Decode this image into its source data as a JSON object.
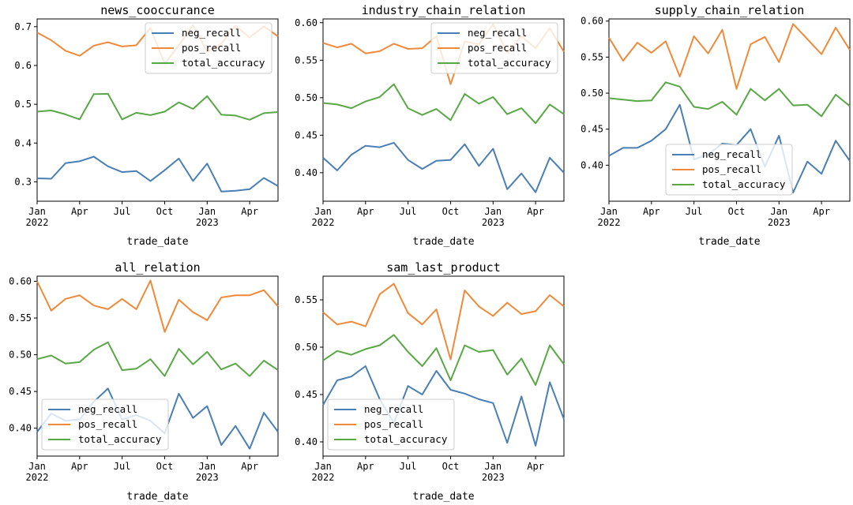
{
  "colors": {
    "neg_recall": "#4a7fb5",
    "pos_recall": "#ef8a3a",
    "total_accuracy": "#59a846"
  },
  "x_axis": {
    "ticks": [
      "Jan\n2022",
      "Apr",
      "Jul",
      "Oct",
      "Jan\n2023",
      "Apr"
    ],
    "label": "trade_date"
  },
  "chart_data": [
    {
      "type": "line",
      "title": "news_cooccurance",
      "xlabel": "trade_date",
      "x": [
        "2022-01",
        "2022-02",
        "2022-03",
        "2022-04",
        "2022-05",
        "2022-06",
        "2022-07",
        "2022-08",
        "2022-09",
        "2022-10",
        "2022-11",
        "2022-12",
        "2023-01",
        "2023-02",
        "2023-03",
        "2023-04",
        "2023-05",
        "2023-06"
      ],
      "ylim": [
        0.25,
        0.72
      ],
      "yticks": [
        0.3,
        0.4,
        0.5,
        0.6,
        0.7
      ],
      "ytick_labels": [
        "0.3",
        "0.4",
        "0.5",
        "0.6",
        "0.7"
      ],
      "legend": "top-right",
      "series": [
        {
          "name": "neg_recall",
          "values": [
            0.309,
            0.308,
            0.348,
            0.353,
            0.365,
            0.34,
            0.325,
            0.328,
            0.302,
            0.33,
            0.36,
            0.302,
            0.347,
            0.275,
            0.277,
            0.281,
            0.31,
            0.289
          ]
        },
        {
          "name": "pos_recall",
          "values": [
            0.685,
            0.665,
            0.638,
            0.625,
            0.651,
            0.66,
            0.649,
            0.652,
            0.697,
            0.604,
            0.652,
            0.704,
            0.635,
            0.656,
            0.702,
            0.672,
            0.701,
            0.675
          ]
        },
        {
          "name": "total_accuracy",
          "values": [
            0.481,
            0.484,
            0.474,
            0.461,
            0.526,
            0.527,
            0.461,
            0.478,
            0.472,
            0.481,
            0.505,
            0.488,
            0.521,
            0.473,
            0.471,
            0.46,
            0.477,
            0.48
          ]
        }
      ]
    },
    {
      "type": "line",
      "title": "industry_chain_relation",
      "xlabel": "trade_date",
      "x": [
        "2022-01",
        "2022-02",
        "2022-03",
        "2022-04",
        "2022-05",
        "2022-06",
        "2022-07",
        "2022-08",
        "2022-09",
        "2022-10",
        "2022-11",
        "2022-12",
        "2023-01",
        "2023-02",
        "2023-03",
        "2023-04",
        "2023-05",
        "2023-06"
      ],
      "ylim": [
        0.362,
        0.605
      ],
      "yticks": [
        0.4,
        0.45,
        0.5,
        0.55,
        0.6
      ],
      "ytick_labels": [
        "0.40",
        "0.45",
        "0.50",
        "0.55",
        "0.60"
      ],
      "legend": "top-right",
      "series": [
        {
          "name": "neg_recall",
          "values": [
            0.42,
            0.403,
            0.424,
            0.436,
            0.434,
            0.44,
            0.417,
            0.405,
            0.416,
            0.417,
            0.438,
            0.409,
            0.432,
            0.378,
            0.399,
            0.374,
            0.42,
            0.4
          ]
        },
        {
          "name": "pos_recall",
          "values": [
            0.573,
            0.567,
            0.572,
            0.559,
            0.562,
            0.572,
            0.565,
            0.566,
            0.582,
            0.518,
            0.575,
            0.571,
            0.598,
            0.56,
            0.582,
            0.566,
            0.593,
            0.561
          ]
        },
        {
          "name": "total_accuracy",
          "values": [
            0.493,
            0.491,
            0.486,
            0.495,
            0.501,
            0.518,
            0.486,
            0.477,
            0.485,
            0.47,
            0.505,
            0.492,
            0.501,
            0.478,
            0.486,
            0.466,
            0.491,
            0.478
          ]
        }
      ]
    },
    {
      "type": "line",
      "title": "supply_chain_relation",
      "xlabel": "trade_date",
      "x": [
        "2022-01",
        "2022-02",
        "2022-03",
        "2022-04",
        "2022-05",
        "2022-06",
        "2022-07",
        "2022-08",
        "2022-09",
        "2022-10",
        "2022-11",
        "2022-12",
        "2023-01",
        "2023-02",
        "2023-03",
        "2023-04",
        "2023-05",
        "2023-06"
      ],
      "ylim": [
        0.35,
        0.603
      ],
      "yticks": [
        0.4,
        0.45,
        0.5,
        0.55,
        0.6
      ],
      "ytick_labels": [
        "0.40",
        "0.45",
        "0.50",
        "0.55",
        "0.60"
      ],
      "legend": "lower-center",
      "series": [
        {
          "name": "neg_recall",
          "values": [
            0.413,
            0.424,
            0.424,
            0.434,
            0.45,
            0.484,
            0.408,
            0.415,
            0.43,
            0.428,
            0.45,
            0.398,
            0.441,
            0.362,
            0.405,
            0.388,
            0.434,
            0.406
          ]
        },
        {
          "name": "pos_recall",
          "values": [
            0.577,
            0.545,
            0.57,
            0.556,
            0.572,
            0.523,
            0.579,
            0.555,
            0.588,
            0.506,
            0.568,
            0.578,
            0.543,
            0.596,
            0.575,
            0.554,
            0.591,
            0.56
          ]
        },
        {
          "name": "total_accuracy",
          "values": [
            0.493,
            0.491,
            0.489,
            0.49,
            0.515,
            0.509,
            0.481,
            0.478,
            0.488,
            0.47,
            0.506,
            0.49,
            0.506,
            0.483,
            0.484,
            0.468,
            0.498,
            0.482
          ]
        }
      ]
    },
    {
      "type": "line",
      "title": "all_relation",
      "xlabel": "trade_date",
      "x": [
        "2022-01",
        "2022-02",
        "2022-03",
        "2022-04",
        "2022-05",
        "2022-06",
        "2022-07",
        "2022-08",
        "2022-09",
        "2022-10",
        "2022-11",
        "2022-12",
        "2023-01",
        "2023-02",
        "2023-03",
        "2023-04",
        "2023-05",
        "2023-06"
      ],
      "ylim": [
        0.362,
        0.607
      ],
      "yticks": [
        0.4,
        0.45,
        0.5,
        0.55,
        0.6
      ],
      "ytick_labels": [
        "0.40",
        "0.45",
        "0.50",
        "0.55",
        "0.60"
      ],
      "legend": "lower-left",
      "series": [
        {
          "name": "neg_recall",
          "values": [
            0.395,
            0.42,
            0.41,
            0.412,
            0.436,
            0.454,
            0.412,
            0.418,
            0.41,
            0.393,
            0.447,
            0.414,
            0.43,
            0.377,
            0.403,
            0.372,
            0.421,
            0.395
          ]
        },
        {
          "name": "pos_recall",
          "values": [
            0.6,
            0.56,
            0.576,
            0.581,
            0.567,
            0.562,
            0.576,
            0.562,
            0.601,
            0.531,
            0.575,
            0.558,
            0.547,
            0.578,
            0.581,
            0.581,
            0.588,
            0.566
          ]
        },
        {
          "name": "total_accuracy",
          "values": [
            0.494,
            0.499,
            0.488,
            0.49,
            0.507,
            0.517,
            0.479,
            0.481,
            0.494,
            0.471,
            0.508,
            0.487,
            0.504,
            0.48,
            0.488,
            0.471,
            0.492,
            0.479
          ]
        }
      ]
    },
    {
      "type": "line",
      "title": "sam_last_product",
      "xlabel": "trade_date",
      "x": [
        "2022-01",
        "2022-02",
        "2022-03",
        "2022-04",
        "2022-05",
        "2022-06",
        "2022-07",
        "2022-08",
        "2022-09",
        "2022-10",
        "2022-11",
        "2022-12",
        "2023-01",
        "2023-02",
        "2023-03",
        "2023-04",
        "2023-05",
        "2023-06"
      ],
      "ylim": [
        0.385,
        0.575
      ],
      "yticks": [
        0.4,
        0.45,
        0.5,
        0.55
      ],
      "ytick_labels": [
        "0.40",
        "0.45",
        "0.50",
        "0.55"
      ],
      "legend": "lower-left",
      "series": [
        {
          "name": "neg_recall",
          "values": [
            0.439,
            0.465,
            0.469,
            0.48,
            0.445,
            0.42,
            0.459,
            0.45,
            0.475,
            0.455,
            0.451,
            0.445,
            0.441,
            0.399,
            0.448,
            0.396,
            0.463,
            0.424
          ]
        },
        {
          "name": "pos_recall",
          "values": [
            0.537,
            0.524,
            0.527,
            0.522,
            0.556,
            0.567,
            0.536,
            0.524,
            0.54,
            0.487,
            0.56,
            0.543,
            0.533,
            0.547,
            0.535,
            0.538,
            0.555,
            0.543
          ]
        },
        {
          "name": "total_accuracy",
          "values": [
            0.486,
            0.496,
            0.492,
            0.498,
            0.502,
            0.513,
            0.495,
            0.48,
            0.499,
            0.465,
            0.502,
            0.495,
            0.497,
            0.471,
            0.488,
            0.46,
            0.502,
            0.482
          ]
        }
      ]
    }
  ]
}
